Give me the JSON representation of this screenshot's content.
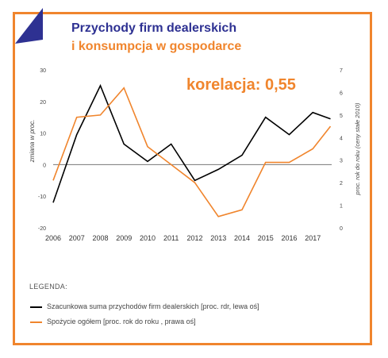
{
  "title_line1": "Przychody firm dealerskich",
  "title_line2": "i konsumpcja w gospodarce",
  "annotation": "korelacja: 0,55",
  "legend": {
    "heading": "LEGENDA:",
    "items": [
      {
        "label": "Szacunkowa suma przychodów firm dealerskich [proc. rdr, lewa oś]",
        "color": "#000000"
      },
      {
        "label": "Spożycie ogółem [proc. rok do roku , prawa oś]",
        "color": "#f0852d"
      }
    ]
  },
  "colors": {
    "accent": "#f0852d",
    "brand": "#2e3192"
  },
  "chart_data": {
    "type": "line",
    "x": [
      2006,
      2007,
      2008,
      2009,
      2010,
      2011,
      2012,
      2013,
      2014,
      2015,
      2016,
      2017,
      2017.75
    ],
    "x_tick_labels": [
      "2006",
      "2007",
      "2008",
      "2009",
      "2010",
      "2011",
      "2012",
      "2013",
      "2014",
      "2015",
      "2016",
      "2017"
    ],
    "ylabel_left": "zmiana w proc.",
    "ylabel_right": "proc. rok do roku (ceny stałe 2010)",
    "ylim_left": [
      -20,
      30
    ],
    "ylim_right": [
      0,
      7
    ],
    "yticks_left": [
      "30",
      "20",
      "10",
      "0",
      "-10",
      "-20"
    ],
    "yticks_right": [
      "7",
      "6",
      "5",
      "4",
      "3",
      "2",
      "1",
      "0"
    ],
    "zero_line_left": 0,
    "grid": false,
    "series": [
      {
        "axis": "left",
        "color": "#000000",
        "values": [
          -12,
          9.5,
          25,
          6.5,
          1,
          6.5,
          -5,
          -1.5,
          3,
          15,
          9.5,
          16.5,
          14.5
        ]
      },
      {
        "axis": "right",
        "color": "#f0852d",
        "values": [
          2.1,
          4.9,
          5.0,
          6.2,
          3.6,
          2.8,
          2.0,
          0.5,
          0.8,
          2.9,
          2.9,
          3.5,
          4.5
        ]
      }
    ]
  }
}
